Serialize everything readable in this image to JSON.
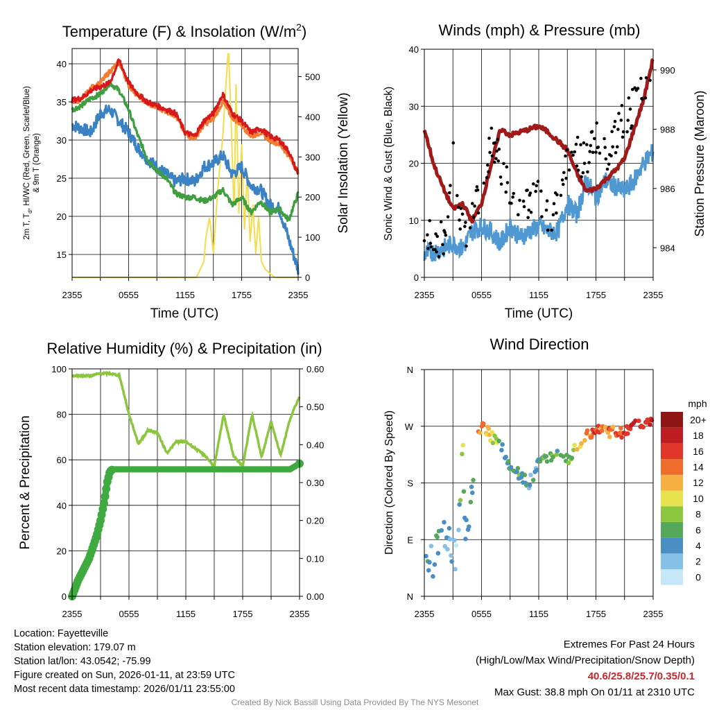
{
  "panels": {
    "temperature": {
      "title": "Temperature (F) & Insolation (W/m",
      "title_sup": "2",
      "title_end": ")",
      "ylabel_left_line1": "2m T, T",
      "ylabel_left_sub": "d",
      "ylabel_left_line1_end": ", HI/WC (Red, Green, Scarlet/Blue)",
      "ylabel_left_line2": "& 9m T (Orange)",
      "ylabel_right": "Solar Insolation (Yellow)",
      "xlabel": "Time (UTC)"
    },
    "winds": {
      "title": "Winds (mph) & Pressure (mb)",
      "ylabel_left": "Sonic Wind & Gust (Blue, Black)",
      "ylabel_right": "Station Pressure (Maroon)",
      "xlabel": "Time (UTC)"
    },
    "humidity": {
      "title": "Relative Humidity (%) & Precipitation (in)",
      "ylabel_left": "Percent & Precipitation"
    },
    "direction": {
      "title": "Wind Direction",
      "ylabel_left": "Direction (Colored By Speed)",
      "colorbar_title": "mph"
    }
  },
  "chart_data": [
    {
      "id": "temperature",
      "type": "line",
      "x_ticks": [
        "2355",
        "0555",
        "1155",
        "1755",
        "2355"
      ],
      "y_left_ticks": [
        15,
        20,
        25,
        30,
        35,
        40
      ],
      "y_left_range": [
        12,
        42
      ],
      "y_right_ticks": [
        0,
        100,
        200,
        300,
        400,
        500
      ],
      "y_right_range": [
        0,
        570
      ],
      "series": [
        {
          "name": "2m T",
          "color": "#d7191c",
          "axis": "left",
          "x": [
            0,
            1,
            2,
            3,
            4,
            5,
            6,
            7,
            8,
            9,
            10,
            11,
            12,
            13,
            14,
            15,
            16,
            17,
            18,
            19,
            20,
            21,
            22,
            23,
            24
          ],
          "values": [
            35.2,
            35.5,
            36.5,
            37.0,
            37.5,
            40.5,
            37.5,
            36.0,
            35.0,
            34.5,
            34.0,
            33.5,
            31.0,
            30.5,
            32.5,
            33.5,
            36.0,
            33.5,
            32.5,
            31.0,
            31.5,
            30.5,
            30.0,
            28.5,
            25.5
          ]
        },
        {
          "name": "9m T",
          "color": "#f47c30",
          "axis": "left",
          "x": [
            0,
            1,
            2,
            3,
            4,
            5,
            6,
            7,
            8,
            9,
            10,
            11,
            12,
            13,
            14,
            15,
            16,
            17,
            18,
            19,
            20,
            21,
            22,
            23,
            24
          ],
          "values": [
            35.0,
            35.3,
            36.8,
            37.5,
            39.0,
            40.2,
            37.2,
            35.8,
            34.8,
            34.3,
            33.8,
            33.2,
            30.8,
            30.2,
            32.0,
            32.8,
            35.0,
            33.0,
            32.0,
            30.5,
            31.0,
            30.0,
            29.5,
            28.0,
            25.8
          ]
        },
        {
          "name": "2m Td / HI/WC",
          "color": "#3f9f3f",
          "axis": "left",
          "x": [
            0,
            1,
            2,
            3,
            4,
            5,
            6,
            7,
            8,
            9,
            10,
            11,
            12,
            13,
            14,
            15,
            16,
            17,
            18,
            19,
            20,
            21,
            22,
            23,
            24
          ],
          "values": [
            34.0,
            34.5,
            35.5,
            36.0,
            37.5,
            36.5,
            34.0,
            30.5,
            27.5,
            26.0,
            25.0,
            23.0,
            22.5,
            22.5,
            22.0,
            22.5,
            23.5,
            21.5,
            22.5,
            20.5,
            22.0,
            20.5,
            21.0,
            19.5,
            23.0
          ]
        },
        {
          "name": "Wind Chill",
          "color": "#3b82c4",
          "axis": "left",
          "x": [
            0,
            1,
            2,
            3,
            4,
            5,
            6,
            7,
            8,
            9,
            10,
            11,
            12,
            13,
            14,
            15,
            16,
            17,
            18,
            19,
            20,
            21,
            22,
            23,
            24
          ],
          "values": [
            32.0,
            31.5,
            31.0,
            33.5,
            34.0,
            32.5,
            31.0,
            29.0,
            27.5,
            26.5,
            25.5,
            24.5,
            25.0,
            24.5,
            26.5,
            27.0,
            28.0,
            25.5,
            26.5,
            24.0,
            23.5,
            21.5,
            21.0,
            17.0,
            13.0
          ]
        },
        {
          "name": "Solar Insolation",
          "color": "#f5dc4a",
          "axis": "right",
          "x": [
            0,
            13.2,
            14.0,
            14.2,
            14.6,
            15.0,
            15.5,
            16.0,
            16.3,
            16.6,
            16.9,
            17.2,
            17.4,
            17.7,
            18.0,
            18.3,
            18.6,
            18.9,
            19.2,
            19.5,
            19.8,
            20.1,
            20.5,
            21.5,
            24
          ],
          "values": [
            0,
            0,
            40,
            100,
            150,
            60,
            230,
            350,
            470,
            570,
            380,
            150,
            480,
            160,
            330,
            120,
            260,
            90,
            180,
            60,
            150,
            40,
            20,
            0,
            0
          ]
        }
      ]
    },
    {
      "id": "winds",
      "type": "line",
      "x_ticks": [
        "2355",
        "0555",
        "1155",
        "1755",
        "2355"
      ],
      "y_left_ticks": [
        0,
        10,
        20,
        30,
        40
      ],
      "y_left_range": [
        0,
        40
      ],
      "y_right_ticks": [
        984,
        986,
        988,
        990
      ],
      "y_right_range": [
        983.0,
        990.7
      ],
      "series": [
        {
          "name": "Sonic Wind",
          "color": "#4f98d1",
          "axis": "left",
          "x": [
            0,
            1,
            2,
            3,
            4,
            5,
            6,
            7,
            8,
            9,
            10,
            11,
            12,
            13,
            14,
            15,
            16,
            17,
            18,
            19,
            20,
            21,
            22,
            23,
            24
          ],
          "values": [
            4,
            4.5,
            5,
            6,
            5,
            8,
            9,
            8,
            6,
            9,
            7,
            8,
            9,
            8,
            8,
            13,
            11,
            17,
            14,
            17,
            16,
            15,
            17,
            20,
            22
          ]
        },
        {
          "name": "Station Pressure",
          "color": "#a01a1a",
          "axis": "right",
          "x": [
            0,
            1,
            2,
            3,
            4,
            5,
            6,
            7,
            8,
            9,
            10,
            11,
            12,
            13,
            14,
            15,
            16,
            17,
            18,
            19,
            20,
            21,
            22,
            23,
            24
          ],
          "values": [
            988.0,
            986.8,
            986.0,
            985.3,
            985.5,
            984.9,
            985.5,
            986.8,
            988.0,
            987.8,
            987.9,
            988.0,
            988.1,
            987.9,
            987.6,
            987.3,
            986.5,
            985.9,
            986.0,
            986.3,
            986.6,
            987.0,
            988.0,
            989.0,
            990.4
          ]
        },
        {
          "name": "Gust",
          "color": "#000000",
          "axis": "left",
          "style": "dots",
          "x": [
            0,
            1,
            2,
            3,
            4,
            5,
            6,
            7,
            8,
            9,
            10,
            11,
            12,
            13,
            14,
            15,
            16,
            17,
            18,
            19,
            20,
            21,
            22,
            23,
            24
          ],
          "values": [
            7,
            8,
            6,
            22,
            8,
            10,
            16,
            23,
            20,
            15,
            12,
            13,
            14,
            11,
            13,
            21,
            22,
            20,
            25,
            22,
            24,
            28,
            30,
            32,
            38.8
          ]
        }
      ]
    },
    {
      "id": "humidity",
      "type": "line",
      "x_ticks": [
        "2355",
        "0555",
        "1155",
        "1755",
        "2355"
      ],
      "y_left_ticks": [
        0,
        20,
        40,
        60,
        80,
        100
      ],
      "y_left_range": [
        0,
        100
      ],
      "y_right_ticks": [
        "0.00",
        "0.10",
        "0.20",
        "0.30",
        "0.40",
        "0.50",
        "0.60"
      ],
      "y_right_range": [
        0,
        0.6
      ],
      "series": [
        {
          "name": "Relative Humidity",
          "color": "#8cc63f",
          "axis": "left",
          "x": [
            0,
            1,
            2,
            3,
            4,
            5,
            6,
            7,
            8,
            9,
            10,
            11,
            12,
            13,
            14,
            15,
            16,
            17,
            18,
            19,
            20,
            21,
            22,
            23,
            24
          ],
          "values": [
            97,
            97,
            97,
            98,
            98,
            97,
            80,
            67,
            73,
            72,
            63,
            68,
            68,
            65,
            62,
            57,
            80,
            62,
            57,
            80,
            61,
            77,
            62,
            78,
            88
          ]
        },
        {
          "name": "Precipitation",
          "color": "#3faa3f",
          "axis": "right",
          "x": [
            0,
            0.3,
            0.6,
            1.0,
            1.4,
            1.8,
            2.2,
            2.6,
            3.0,
            3.4,
            3.7,
            4.0,
            4.3,
            6,
            9,
            12,
            15,
            18,
            21,
            23,
            24
          ],
          "values": [
            0.0,
            0.02,
            0.04,
            0.06,
            0.08,
            0.1,
            0.13,
            0.16,
            0.2,
            0.25,
            0.3,
            0.33,
            0.335,
            0.335,
            0.335,
            0.335,
            0.335,
            0.335,
            0.335,
            0.335,
            0.35
          ]
        }
      ]
    },
    {
      "id": "direction",
      "type": "scatter",
      "x_ticks": [
        "2355",
        "0555",
        "1155",
        "1755",
        "2355"
      ],
      "y_ticks": [
        "N",
        "E",
        "S",
        "W",
        "N"
      ],
      "y_range": [
        0,
        360
      ],
      "colorbar_labels": [
        "0",
        "2",
        "4",
        "6",
        "8",
        "10",
        "12",
        "14",
        "16",
        "18",
        "20+"
      ],
      "colorbar_colors": [
        "#c6e7f7",
        "#86c0e6",
        "#4a8fc4",
        "#55a85a",
        "#8cc63f",
        "#e6e14c",
        "#f5b041",
        "#ef6c2b",
        "#e0352b",
        "#be1e23",
        "#8f1414"
      ],
      "series": [
        {
          "name": "Direction",
          "x": [
            0,
            0.5,
            1,
            1.5,
            2,
            2.5,
            3,
            3.3,
            3.6,
            4,
            4.3,
            5,
            5.5,
            6,
            7,
            8,
            9,
            10,
            11,
            12,
            13,
            14,
            15,
            16,
            17,
            18,
            19,
            20,
            21,
            22,
            23,
            24
          ],
          "values": [
            35,
            45,
            60,
            80,
            90,
            85,
            60,
            70,
            100,
            240,
            90,
            160,
            250,
            270,
            255,
            240,
            205,
            195,
            180,
            210,
            220,
            225,
            215,
            240,
            255,
            265,
            260,
            262,
            258,
            270,
            275,
            280
          ],
          "speeds": [
            4,
            3,
            5,
            6,
            4,
            3,
            2,
            1,
            2,
            10,
            2,
            5,
            12,
            14,
            10,
            6,
            5,
            6,
            4,
            5,
            6,
            6,
            5,
            11,
            13,
            16,
            13,
            15,
            16,
            17,
            16,
            18
          ]
        }
      ]
    }
  ],
  "info": {
    "location": "Location: Fayetteville",
    "elevation": "Station elevation: 179.07 m",
    "latlon": "Station lat/lon: 43.0542; -75.99",
    "created": "Figure created on Sun, 2026-01-11, at 23:59 UTC",
    "recent": "Most recent data timestamp: 2026/01/11 23:55:00",
    "extremes_title": "Extremes For Past 24 Hours",
    "extremes_desc": "(High/Low/Max Wind/Precipitation/Snow Depth)",
    "extremes_values": "40.6/25.8/25.7/0.35/0.1",
    "max_gust": "Max Gust: 38.8 mph On 01/11 at 2310 UTC",
    "credit": "Created By Nick Bassill Using Data Provided By The NYS Mesonet"
  },
  "colors": {
    "temp_red": "#d7191c",
    "temp_orange": "#f47c30",
    "dewpoint_green": "#3f9f3f",
    "windchill_blue": "#3b82c4",
    "insolation_yellow": "#f5dc4a",
    "wind_blue": "#4f98d1",
    "pressure_maroon": "#a01a1a",
    "rh_light_green": "#8cc63f",
    "precip_green": "#3faa3f",
    "extremes_red": "#c8252c"
  }
}
